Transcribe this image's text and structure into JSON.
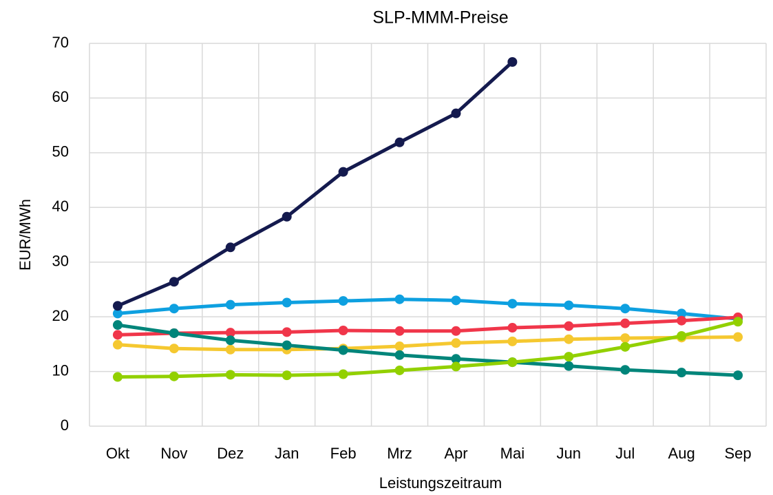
{
  "chart_data": {
    "type": "line",
    "title": "SLP-MMM-Preise",
    "x_label": "Leistungszeitraum",
    "y_label": "EUR/MWh",
    "categories": [
      "Okt",
      "Nov",
      "Dez",
      "Jan",
      "Feb",
      "Mrz",
      "Apr",
      "Mai",
      "Jun",
      "Jul",
      "Aug",
      "Sep"
    ],
    "ylim": [
      0,
      70
    ],
    "yticks": [
      0,
      10,
      20,
      30,
      40,
      50,
      60,
      70
    ],
    "grid": true,
    "series": [
      {
        "color": "#0ea0e0",
        "values": [
          20.6,
          21.5,
          22.2,
          22.6,
          22.9,
          23.2,
          23.0,
          22.4,
          22.1,
          21.5,
          20.6,
          19.6
        ]
      },
      {
        "color": "#f0364a",
        "values": [
          16.7,
          17.0,
          17.1,
          17.2,
          17.5,
          17.4,
          17.4,
          18.0,
          18.3,
          18.8,
          19.3,
          19.9
        ]
      },
      {
        "color": "#f5c830",
        "values": [
          14.9,
          14.2,
          14.0,
          14.0,
          14.2,
          14.6,
          15.2,
          15.5,
          15.9,
          16.1,
          16.2,
          16.3
        ]
      },
      {
        "color": "#00857a",
        "values": [
          18.5,
          17.0,
          15.7,
          14.8,
          13.9,
          13.0,
          12.3,
          11.7,
          11.0,
          10.3,
          9.8,
          9.3
        ]
      },
      {
        "color": "#92d000",
        "values": [
          9.0,
          9.1,
          9.4,
          9.3,
          9.5,
          10.2,
          10.9,
          11.7,
          12.7,
          14.5,
          16.5,
          19.1
        ]
      },
      {
        "color": "#141a4e",
        "values": [
          22.0,
          26.4,
          32.7,
          38.3,
          46.5,
          51.9,
          57.2,
          66.6,
          null,
          null,
          null,
          null
        ]
      }
    ]
  }
}
